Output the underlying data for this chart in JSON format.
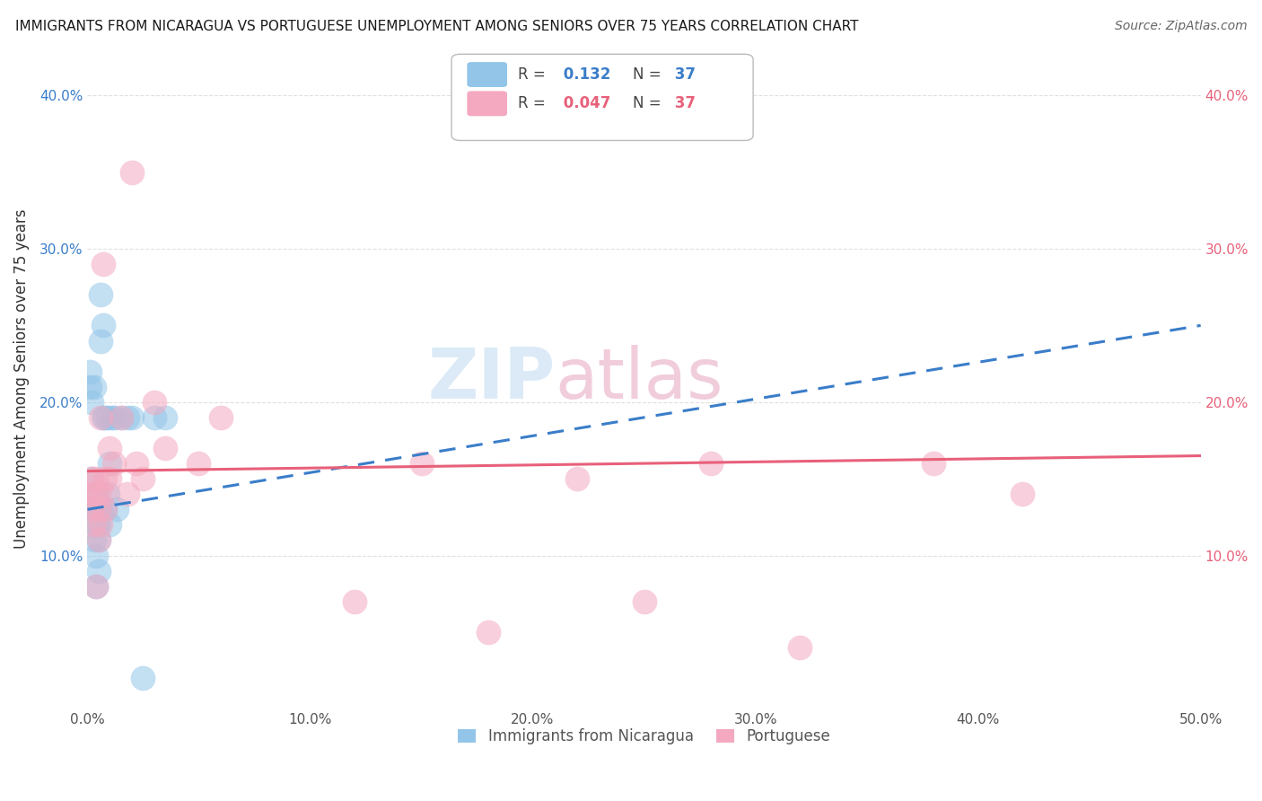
{
  "title": "IMMIGRANTS FROM NICARAGUA VS PORTUGUESE UNEMPLOYMENT AMONG SENIORS OVER 75 YEARS CORRELATION CHART",
  "source": "Source: ZipAtlas.com",
  "ylabel": "Unemployment Among Seniors over 75 years",
  "r_nicaragua": 0.132,
  "r_portuguese": 0.047,
  "n_nicaragua": 37,
  "n_portuguese": 37,
  "blue_color": "#92C5E8",
  "pink_color": "#F4A9C0",
  "blue_line_color": "#3A7DC9",
  "pink_line_color": "#E8607A",
  "watermark_color": "#D8E8F5",
  "watermark_pink": "#F0C8D8",
  "nicaragua_x": [
    0.001,
    0.001,
    0.002,
    0.002,
    0.002,
    0.003,
    0.003,
    0.003,
    0.003,
    0.004,
    0.004,
    0.004,
    0.004,
    0.005,
    0.005,
    0.005,
    0.005,
    0.006,
    0.006,
    0.006,
    0.007,
    0.007,
    0.008,
    0.008,
    0.009,
    0.009,
    0.01,
    0.01,
    0.011,
    0.012,
    0.013,
    0.015,
    0.018,
    0.02,
    0.025,
    0.03,
    0.035
  ],
  "nicaragua_y": [
    0.21,
    0.22,
    0.14,
    0.2,
    0.15,
    0.13,
    0.21,
    0.11,
    0.13,
    0.08,
    0.12,
    0.14,
    0.1,
    0.13,
    0.09,
    0.11,
    0.12,
    0.27,
    0.24,
    0.13,
    0.25,
    0.19,
    0.19,
    0.13,
    0.19,
    0.14,
    0.12,
    0.16,
    0.19,
    0.19,
    0.13,
    0.19,
    0.19,
    0.19,
    0.02,
    0.19,
    0.19
  ],
  "portuguese_x": [
    0.001,
    0.002,
    0.002,
    0.003,
    0.003,
    0.004,
    0.004,
    0.005,
    0.005,
    0.005,
    0.006,
    0.006,
    0.007,
    0.007,
    0.008,
    0.008,
    0.01,
    0.01,
    0.012,
    0.015,
    0.018,
    0.02,
    0.022,
    0.025,
    0.03,
    0.035,
    0.05,
    0.06,
    0.12,
    0.15,
    0.18,
    0.22,
    0.25,
    0.28,
    0.32,
    0.38,
    0.42
  ],
  "portuguese_y": [
    0.14,
    0.13,
    0.15,
    0.12,
    0.14,
    0.15,
    0.08,
    0.14,
    0.11,
    0.13,
    0.19,
    0.12,
    0.29,
    0.14,
    0.15,
    0.13,
    0.17,
    0.15,
    0.16,
    0.19,
    0.14,
    0.35,
    0.16,
    0.15,
    0.2,
    0.17,
    0.16,
    0.19,
    0.07,
    0.16,
    0.05,
    0.15,
    0.07,
    0.16,
    0.04,
    0.16,
    0.14
  ],
  "xlim": [
    0.0,
    0.5
  ],
  "ylim": [
    0.0,
    0.43
  ],
  "xticks": [
    0.0,
    0.1,
    0.2,
    0.3,
    0.4,
    0.5
  ],
  "xtick_labels": [
    "0.0%",
    "10.0%",
    "20.0%",
    "30.0%",
    "40.0%",
    "50.0%"
  ],
  "yticks": [
    0.0,
    0.1,
    0.2,
    0.3,
    0.4
  ],
  "ytick_labels_left": [
    "",
    "10.0%",
    "20.0%",
    "30.0%",
    "40.0%"
  ],
  "ytick_labels_right": [
    "",
    "10.0%",
    "20.0%",
    "30.0%",
    "40.0%"
  ],
  "grid_color": "#e0e0e0"
}
